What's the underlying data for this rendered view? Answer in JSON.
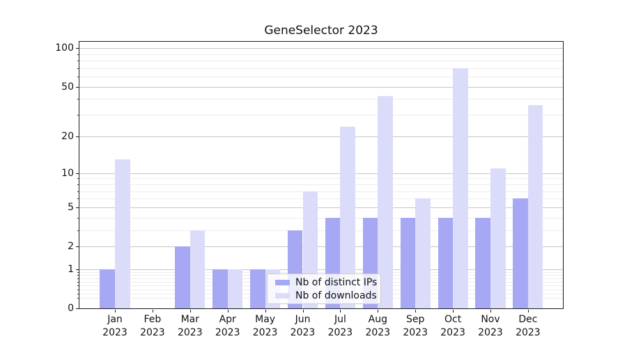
{
  "chart_data": {
    "type": "bar",
    "title": "GeneSelector 2023",
    "categories": [
      "Jan",
      "Feb",
      "Mar",
      "Apr",
      "May",
      "Jun",
      "Jul",
      "Aug",
      "Sep",
      "Oct",
      "Nov",
      "Dec"
    ],
    "year_label": "2023",
    "series": [
      {
        "name": "Nb of distinct IPs",
        "color": "#a6a8f4",
        "values": [
          1,
          0,
          2,
          1,
          1,
          3,
          4,
          4,
          4,
          4,
          4,
          6
        ]
      },
      {
        "name": "Nb of downloads",
        "color": "#dbdcf9",
        "values": [
          13,
          0,
          3,
          1,
          1,
          7,
          24,
          42,
          6,
          70,
          11,
          36
        ]
      }
    ],
    "xlabel": "",
    "ylabel": "",
    "yscale": "log1p",
    "ylim": [
      0,
      115
    ],
    "yticks": [
      100,
      50,
      20,
      10,
      5,
      2,
      1,
      0
    ],
    "minor_yticks": [
      0.2,
      0.3,
      0.4,
      0.5,
      0.6,
      0.7,
      0.8,
      0.9,
      3,
      4,
      6,
      7,
      8,
      9,
      30,
      40,
      60,
      70,
      80,
      90
    ],
    "grid": "horizontal major+minor",
    "legend_position": "inside-bottom-center"
  }
}
